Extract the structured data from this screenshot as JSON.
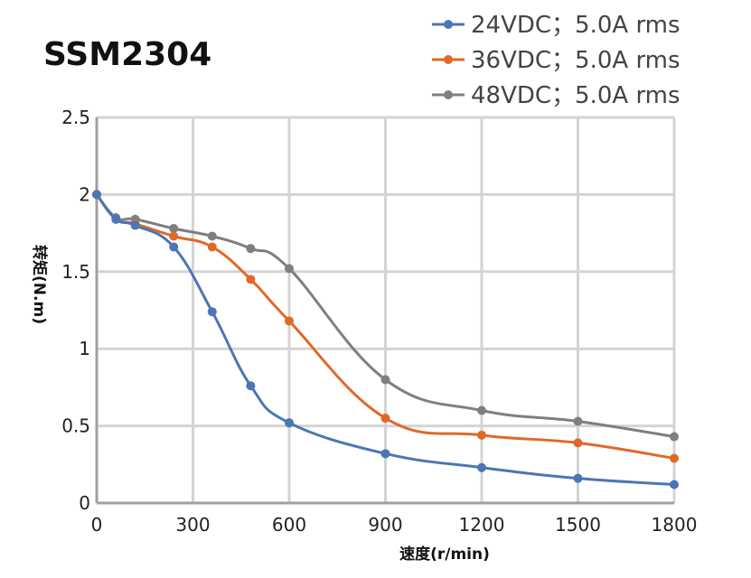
{
  "chart_data": {
    "type": "line",
    "title": "SSM2304",
    "xlabel": "速度(r/min)",
    "ylabel": "转矩(N.m)",
    "xlim": [
      0,
      1800
    ],
    "ylim": [
      0,
      2.5
    ],
    "xticks": [
      0,
      300,
      600,
      900,
      1200,
      1500,
      1800
    ],
    "yticks": [
      0,
      0.5,
      1,
      1.5,
      2,
      2.5
    ],
    "ytick_labels": [
      "0",
      "0.5",
      "1",
      "1.5",
      "2",
      "2.5"
    ],
    "grid": true,
    "legend_position": "top-right",
    "series": [
      {
        "name": "24VDC；5.0A rms",
        "color": "#4a76b5",
        "x": [
          0,
          60,
          120,
          240,
          360,
          480,
          600,
          900,
          1200,
          1500,
          1800
        ],
        "y": [
          2.0,
          1.84,
          1.8,
          1.66,
          1.24,
          0.76,
          0.52,
          0.32,
          0.23,
          0.16,
          0.12
        ]
      },
      {
        "name": "36VDC；5.0A rms",
        "color": "#e0692a",
        "x": [
          0,
          60,
          120,
          240,
          360,
          480,
          600,
          900,
          1200,
          1500,
          1800
        ],
        "y": [
          2.0,
          1.84,
          1.81,
          1.73,
          1.66,
          1.45,
          1.18,
          0.55,
          0.44,
          0.39,
          0.29
        ]
      },
      {
        "name": "48VDC；5.0A rms",
        "color": "#7f7f7f",
        "x": [
          0,
          60,
          120,
          240,
          360,
          480,
          600,
          900,
          1200,
          1500,
          1800
        ],
        "y": [
          2.0,
          1.85,
          1.84,
          1.78,
          1.73,
          1.65,
          1.52,
          0.8,
          0.6,
          0.53,
          0.43
        ]
      }
    ]
  }
}
